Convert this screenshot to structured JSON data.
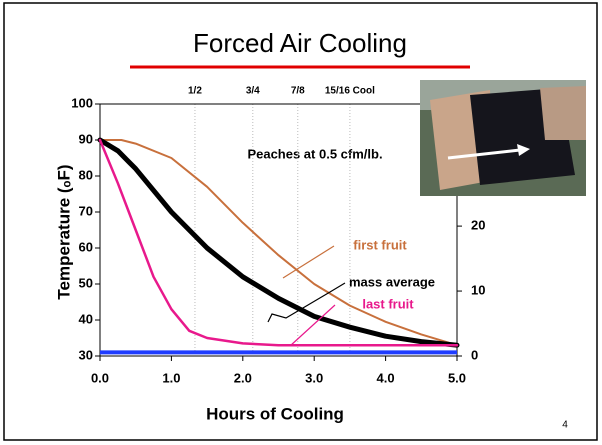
{
  "chart_data": {
    "type": "line",
    "title": "Forced Air Cooling",
    "annotation": "Peaches at 0.5 cfm/lb.",
    "xlabel": "Hours of Cooling",
    "ylabel": "Temperature (ₒF)",
    "page_number": "4",
    "xlim": [
      0,
      5
    ],
    "ylim": [
      30,
      100
    ],
    "y2lim": [
      0,
      38.8
    ],
    "xticks": [
      {
        "value": 0,
        "label": "0.0"
      },
      {
        "value": 1,
        "label": "1.0"
      },
      {
        "value": 2,
        "label": "2.0"
      },
      {
        "value": 3,
        "label": "3.0"
      },
      {
        "value": 4,
        "label": "4.0"
      },
      {
        "value": 5,
        "label": "5.0"
      }
    ],
    "yticks": [
      30,
      40,
      50,
      60,
      70,
      80,
      90,
      100
    ],
    "y2ticks": [
      0,
      10,
      20
    ],
    "top_markers": [
      {
        "value": 1.33,
        "label": "1/2"
      },
      {
        "value": 2.14,
        "label": "3/4"
      },
      {
        "value": 2.77,
        "label": "7/8"
      },
      {
        "value": 3.5,
        "label": "15/16 Cool"
      }
    ],
    "baseline": {
      "value": 31,
      "color": "#1f3cff"
    },
    "series": [
      {
        "name": "first fruit",
        "color": "#c8703c",
        "width": 2,
        "x": [
          0,
          0.3,
          0.5,
          1,
          1.5,
          2,
          2.5,
          3,
          3.5,
          4,
          4.5,
          5
        ],
        "values": [
          90,
          90,
          89,
          85,
          77,
          67,
          58,
          50,
          44,
          39.5,
          36,
          33
        ]
      },
      {
        "name": "mass average",
        "color": "#000000",
        "width": 5,
        "x": [
          0,
          0.25,
          0.5,
          1,
          1.5,
          2,
          2.5,
          3,
          3.5,
          4,
          4.5,
          5
        ],
        "values": [
          90,
          87,
          82,
          70,
          60,
          52,
          46,
          41,
          38,
          35.5,
          34,
          33
        ]
      },
      {
        "name": "last fruit",
        "color": "#e8198c",
        "width": 2.5,
        "x": [
          0,
          0.25,
          0.5,
          0.75,
          1,
          1.25,
          1.5,
          2,
          2.5,
          3,
          4,
          5
        ],
        "values": [
          90,
          78,
          65,
          52,
          43,
          37,
          35,
          33.5,
          33,
          33,
          33,
          33
        ]
      }
    ]
  }
}
